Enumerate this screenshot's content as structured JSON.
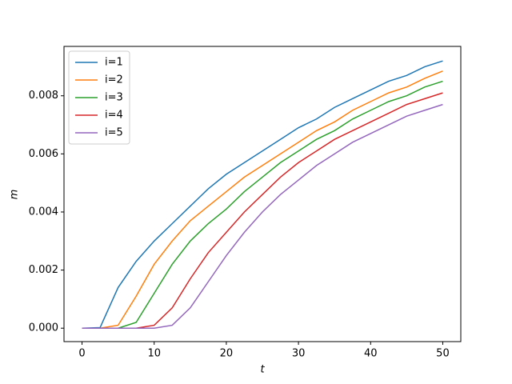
{
  "chart_data": {
    "type": "line",
    "x_label": "t",
    "y_label": "m",
    "x": [
      0,
      2.5,
      5,
      7.5,
      10,
      12.5,
      15,
      17.5,
      20,
      22.5,
      25,
      27.5,
      30,
      32.5,
      35,
      37.5,
      40,
      42.5,
      45,
      47.5,
      50
    ],
    "series": [
      {
        "name": "i=1",
        "color": "#1f77b4",
        "values": [
          0,
          2e-05,
          0.0014,
          0.0023,
          0.003,
          0.0036,
          0.0042,
          0.0048,
          0.0053,
          0.0057,
          0.0061,
          0.0065,
          0.0069,
          0.0072,
          0.0076,
          0.0079,
          0.0082,
          0.0085,
          0.0087,
          0.009,
          0.0092
        ]
      },
      {
        "name": "i=2",
        "color": "#ff7f0e",
        "values": [
          0,
          0,
          0.0001,
          0.0011,
          0.0022,
          0.003,
          0.0037,
          0.0042,
          0.0047,
          0.0052,
          0.0056,
          0.006,
          0.0064,
          0.0068,
          0.0071,
          0.0075,
          0.0078,
          0.0081,
          0.0083,
          0.0086,
          0.00885
        ]
      },
      {
        "name": "i=3",
        "color": "#2ca02c",
        "values": [
          0,
          0,
          0,
          0.0002,
          0.0012,
          0.0022,
          0.003,
          0.0036,
          0.0041,
          0.0047,
          0.0052,
          0.0057,
          0.0061,
          0.0065,
          0.0068,
          0.0072,
          0.0075,
          0.0078,
          0.008,
          0.0083,
          0.0085
        ]
      },
      {
        "name": "i=4",
        "color": "#d62728",
        "values": [
          0,
          0,
          0,
          0,
          0.0001,
          0.0007,
          0.0017,
          0.0026,
          0.0033,
          0.004,
          0.0046,
          0.0052,
          0.0057,
          0.0061,
          0.0065,
          0.0068,
          0.0071,
          0.0074,
          0.0077,
          0.0079,
          0.0081
        ]
      },
      {
        "name": "i=5",
        "color": "#9467bd",
        "values": [
          0,
          0,
          0,
          0,
          0,
          0.0001,
          0.0007,
          0.0016,
          0.0025,
          0.0033,
          0.004,
          0.0046,
          0.0051,
          0.0056,
          0.006,
          0.0064,
          0.0067,
          0.007,
          0.0073,
          0.0075,
          0.0077
        ]
      }
    ],
    "xlim": [
      -2.5,
      52.5
    ],
    "ylim": [
      -0.000462,
      0.0097
    ],
    "xticks": [
      0,
      10,
      20,
      30,
      40,
      50
    ],
    "yticks": [
      {
        "value": 0,
        "label": "0.000"
      },
      {
        "value": 0.002,
        "label": "0.002"
      },
      {
        "value": 0.004,
        "label": "0.004"
      },
      {
        "value": 0.006,
        "label": "0.006"
      },
      {
        "value": 0.008,
        "label": "0.008"
      }
    ],
    "legend": "upper left",
    "grid": false
  }
}
